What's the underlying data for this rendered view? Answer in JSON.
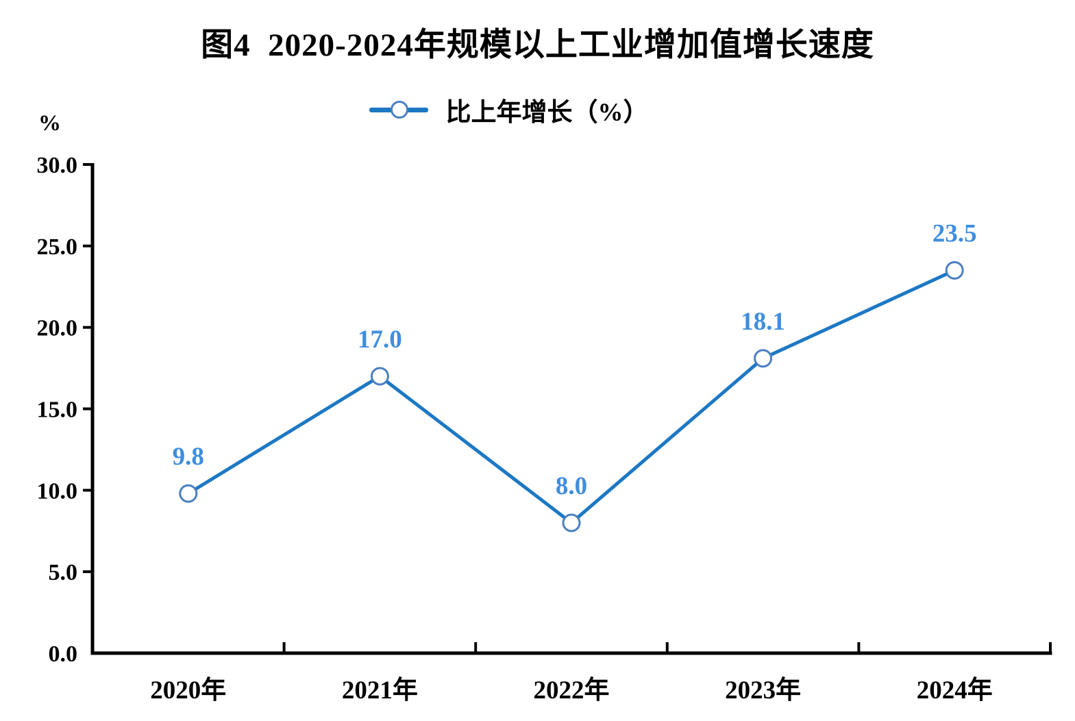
{
  "chart_data": {
    "type": "line",
    "title": "图4  2020-2024年规模以上工业增加值增长速度",
    "categories": [
      "2020年",
      "2021年",
      "2022年",
      "2023年",
      "2024年"
    ],
    "series": [
      {
        "name": "比上年增长（%）",
        "values": [
          9.8,
          17.0,
          8.0,
          18.1,
          23.5
        ]
      }
    ],
    "data_labels": [
      "9.8",
      "17.0",
      "8.0",
      "18.1",
      "23.5"
    ],
    "xlabel": "",
    "ylabel": "%",
    "ylim": [
      0,
      30
    ],
    "ytick_step": 5,
    "ytick_labels": [
      "0.0",
      "5.0",
      "10.0",
      "15.0",
      "20.0",
      "25.0",
      "30.0"
    ],
    "grid": false,
    "legend_position": "top-center",
    "marker": "open-circle",
    "colors": {
      "line": "#1d78c4",
      "marker_stroke": "#4a7fc1",
      "marker_fill": "#ffffff",
      "data_label": "#3f8ede",
      "axis": "#000000",
      "tick_text": "#000000",
      "title_text": "#000000"
    }
  }
}
